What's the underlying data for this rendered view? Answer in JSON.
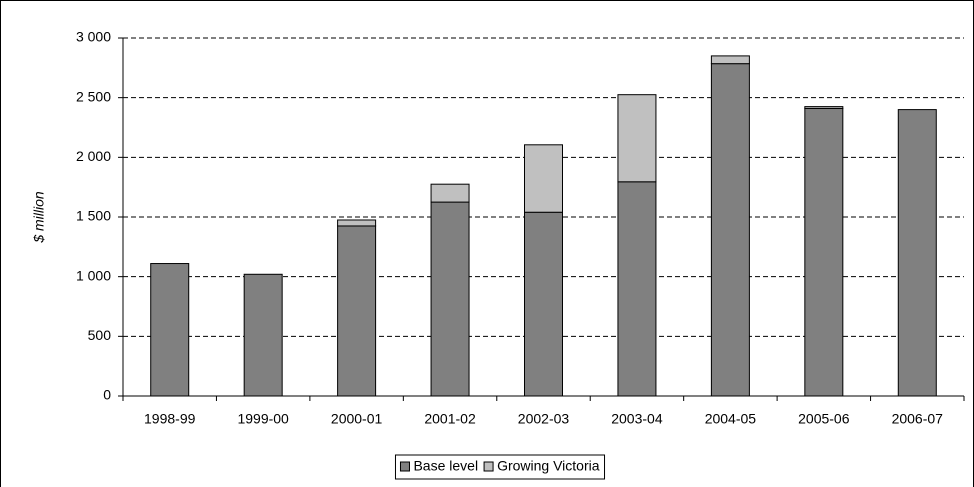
{
  "chart_data": {
    "type": "stacked-bar",
    "y_label": "$ million",
    "categories": [
      "1998-99",
      "1999-00",
      "2000-01",
      "2001-02",
      "2002-03",
      "2003-04",
      "2004-05",
      "2005-06",
      "2006-07"
    ],
    "series": [
      {
        "name": "Base level",
        "color": "#808080",
        "values": [
          1110,
          1020,
          1425,
          1625,
          1540,
          1795,
          2785,
          2410,
          2400
        ]
      },
      {
        "name": "Growing Victoria",
        "color": "#c0c0c0",
        "values": [
          0,
          0,
          50,
          150,
          565,
          730,
          65,
          15,
          0
        ]
      }
    ],
    "ylim": [
      0,
      3000
    ],
    "yticks": [
      0,
      500,
      {
        "value": 1000,
        "label": "1 000"
      },
      {
        "value": 1500,
        "label": "1 500"
      },
      {
        "value": 2000,
        "label": "2 000"
      },
      {
        "value": 2500,
        "label": "2 500"
      },
      {
        "value": 3000,
        "label": "3 000"
      }
    ],
    "grid": true,
    "legend": "bottom"
  }
}
